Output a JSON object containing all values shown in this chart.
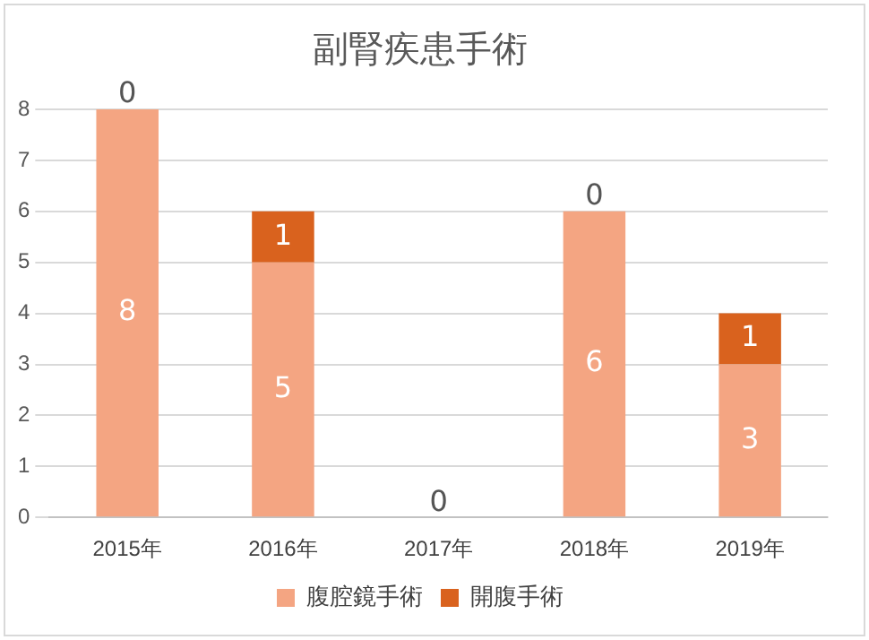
{
  "chart_data": {
    "type": "bar",
    "title": "副腎疾患手術",
    "categories": [
      "2015年",
      "2016年",
      "2017年",
      "2018年",
      "2019年"
    ],
    "stacked": true,
    "series": [
      {
        "name": "腹腔鏡手術",
        "color": "#f4a582",
        "values": [
          8,
          5,
          0,
          6,
          3
        ],
        "value_labels": [
          "8",
          "5",
          null,
          "6",
          "3"
        ]
      },
      {
        "name": "開腹手術",
        "color": "#d9621e",
        "values": [
          0,
          1,
          0,
          0,
          1
        ],
        "value_labels": [
          "0",
          "1",
          "0",
          "0",
          "1"
        ]
      }
    ],
    "ylim": [
      0,
      8
    ],
    "yticks": [
      0,
      1,
      2,
      3,
      4,
      5,
      6,
      7,
      8
    ],
    "grid": "y",
    "legend": "bottom"
  }
}
